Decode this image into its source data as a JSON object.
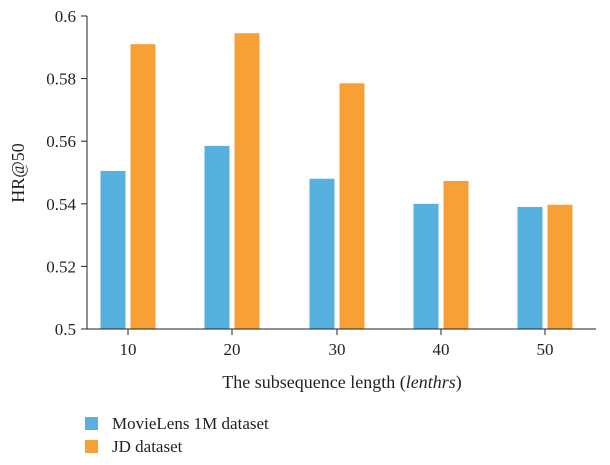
{
  "chart_data": {
    "type": "bar",
    "title": "",
    "categories": [
      "10",
      "20",
      "30",
      "40",
      "50"
    ],
    "series": [
      {
        "name": "MovieLens 1M dataset",
        "color": "#57b1de",
        "values": [
          0.5505,
          0.5585,
          0.548,
          0.54,
          0.539
        ]
      },
      {
        "name": "JD dataset",
        "color": "#f7a035",
        "values": [
          0.591,
          0.5945,
          0.5785,
          0.5473,
          0.5397
        ]
      }
    ],
    "xlabel": {
      "main": "The subsequence length (",
      "italic": "lenthrs",
      "close": ")"
    },
    "ylabel": "HR@50",
    "ylim": [
      0.5,
      0.6
    ],
    "yticks": [
      "0.5",
      "0.52",
      "0.54",
      "0.56",
      "0.58",
      "0.6"
    ],
    "grid": false,
    "legend_position": "bottom-left"
  }
}
